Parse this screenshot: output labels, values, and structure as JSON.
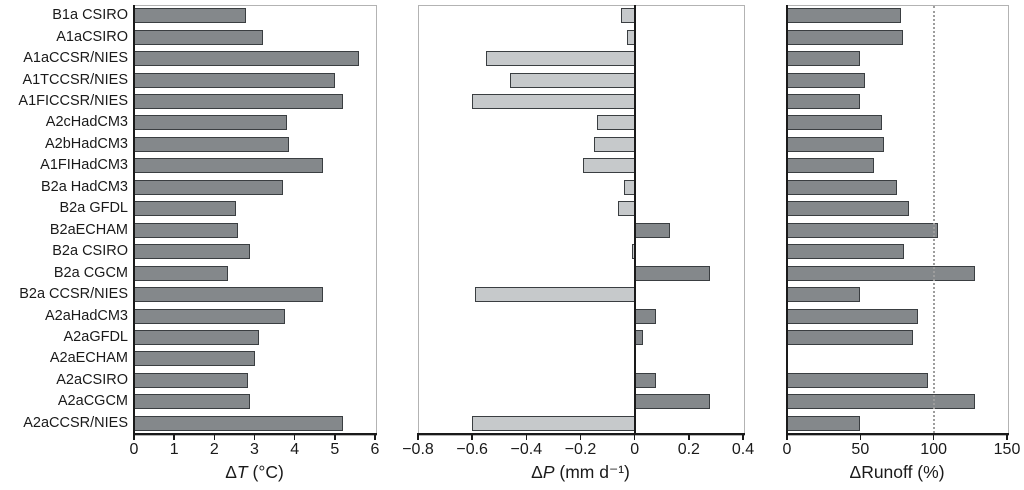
{
  "figure": {
    "background": "#ffffff",
    "description": "Three-panel horizontal bar chart of climate scenarios: temperature change, precipitation change, runoff change"
  },
  "chart_data": {
    "type": "bar",
    "orientation": "horizontal",
    "grid": false,
    "legend": null,
    "categories": [
      "B1a CSIRO",
      "A1aCSIRO",
      "A1aCCSR/NIES",
      "A1TCCSR/NIES",
      "A1FICCSR/NIES",
      "A2cHadCM3",
      "A2bHadCM3",
      "A1FIHadCM3",
      "B2a HadCM3",
      "B2a GFDL",
      "B2aECHAM",
      "B2a CSIRO",
      "B2a CGCM",
      "B2a CCSR/NIES",
      "A2aHadCM3",
      "A2aGFDL",
      "A2aECHAM",
      "A2aCSIRO",
      "A2aCGCM",
      "A2aCCSR/NIES"
    ],
    "panels": [
      {
        "id": "delta-t",
        "xlabel_text": "ΔT (°C)",
        "xlabel_prefix": "Δ",
        "xlabel_var": "T",
        "xlabel_var_italic": true,
        "xlabel_unit": " (°C)",
        "xlim": [
          0,
          6
        ],
        "ticks": [
          0,
          1,
          2,
          3,
          4,
          5,
          6
        ],
        "tick_labels": [
          "0",
          "1",
          "2",
          "3",
          "4",
          "5",
          "6"
        ],
        "zero_line": false,
        "reference_line": null,
        "values": [
          2.8,
          3.2,
          5.6,
          5.0,
          5.2,
          3.8,
          3.85,
          4.7,
          3.7,
          2.55,
          2.6,
          2.9,
          2.35,
          4.7,
          3.75,
          3.1,
          3.0,
          2.85,
          2.9,
          5.2
        ]
      },
      {
        "id": "delta-p",
        "xlabel_text": "ΔP (mm d⁻¹)",
        "xlabel_prefix": "Δ",
        "xlabel_var": "P",
        "xlabel_var_italic": true,
        "xlabel_unit": " (mm d⁻¹)",
        "xlim": [
          -0.8,
          0.4
        ],
        "ticks": [
          -0.8,
          -0.6,
          -0.4,
          -0.2,
          0,
          0.2,
          0.4
        ],
        "tick_labels": [
          "−0.8",
          "−0.6",
          "−0.4",
          "−0.2",
          "0",
          "0.2",
          "0.4"
        ],
        "zero_line": true,
        "reference_line": null,
        "values": [
          -0.05,
          -0.03,
          -0.55,
          -0.46,
          -0.6,
          -0.14,
          -0.15,
          -0.19,
          -0.04,
          -0.06,
          0.13,
          -0.01,
          0.28,
          -0.59,
          0.08,
          0.03,
          0,
          0.08,
          0.28,
          -0.6
        ]
      },
      {
        "id": "delta-runoff",
        "xlabel_text": "ΔRunoff (%)",
        "xlabel_prefix": "Δ",
        "xlabel_var": "Runoff",
        "xlabel_var_italic": false,
        "xlabel_unit": " (%)",
        "xlim": [
          0,
          150
        ],
        "ticks": [
          0,
          50,
          100,
          150
        ],
        "tick_labels": [
          "0",
          "50",
          "100",
          "150"
        ],
        "zero_line": false,
        "reference_line": 100,
        "values": [
          78,
          79,
          50,
          53,
          50,
          65,
          66,
          59,
          75,
          83,
          103,
          80,
          128,
          50,
          89,
          86,
          0,
          96,
          128,
          50
        ]
      }
    ],
    "colors": {
      "bar_dark": "#84888b",
      "bar_light": "#c6c9cb",
      "bar_border": "#3a3e41",
      "axis": "#1a1a1a",
      "frame": "#b3b3b3",
      "reference": "#9d9d9d",
      "text": "#1a1a1a"
    }
  }
}
